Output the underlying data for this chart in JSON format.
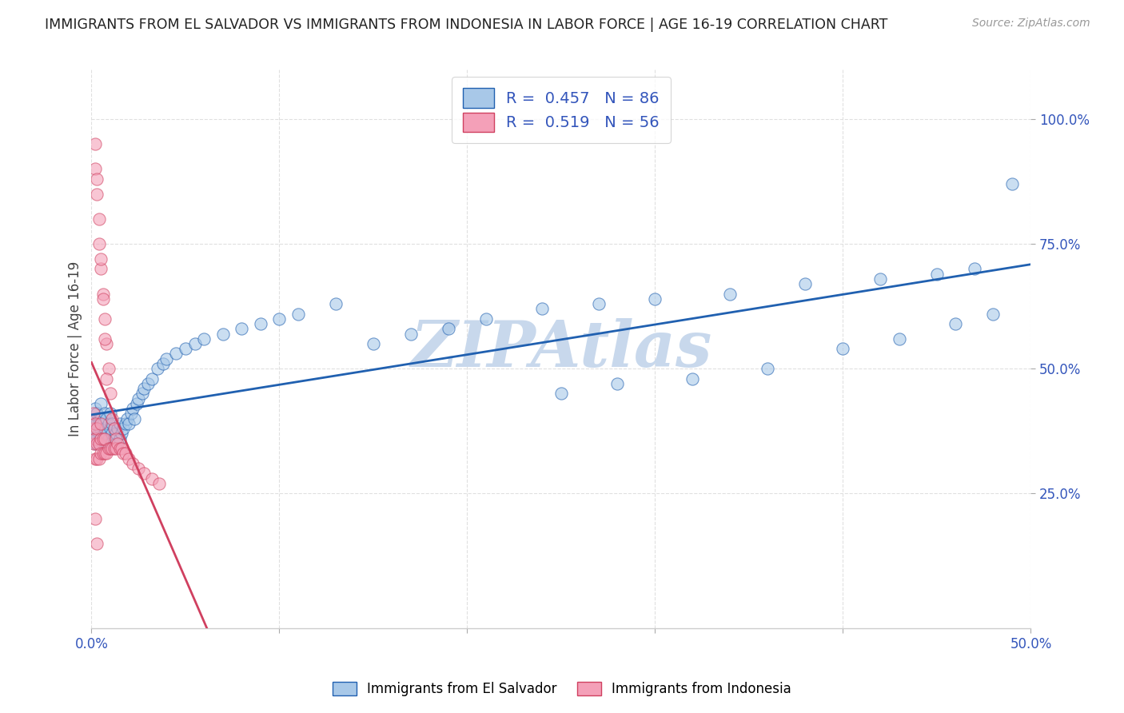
{
  "title": "IMMIGRANTS FROM EL SALVADOR VS IMMIGRANTS FROM INDONESIA IN LABOR FORCE | AGE 16-19 CORRELATION CHART",
  "source": "Source: ZipAtlas.com",
  "ylabel": "In Labor Force | Age 16-19",
  "legend_label1": "Immigrants from El Salvador",
  "legend_label2": "Immigrants from Indonesia",
  "R1": 0.457,
  "N1": 86,
  "R2": 0.519,
  "N2": 56,
  "color_salvador": "#a8c8e8",
  "color_indonesia": "#f4a0b8",
  "color_salvador_line": "#2060b0",
  "color_indonesia_line": "#d04060",
  "watermark": "ZIPAtlas",
  "watermark_color": "#c8d8ec",
  "xlim": [
    0.0,
    0.5
  ],
  "ylim": [
    -0.02,
    1.1
  ],
  "background_color": "#ffffff",
  "grid_color": "#e0e0e0",
  "text_color_blue": "#3355bb",
  "text_color_dark": "#222222",
  "text_color_gray": "#999999",
  "sal_x": [
    0.001,
    0.001,
    0.002,
    0.002,
    0.002,
    0.003,
    0.003,
    0.003,
    0.004,
    0.004,
    0.004,
    0.005,
    0.005,
    0.005,
    0.005,
    0.006,
    0.006,
    0.006,
    0.007,
    0.007,
    0.007,
    0.008,
    0.008,
    0.008,
    0.009,
    0.009,
    0.01,
    0.01,
    0.01,
    0.011,
    0.011,
    0.012,
    0.012,
    0.013,
    0.013,
    0.014,
    0.015,
    0.015,
    0.016,
    0.017,
    0.018,
    0.019,
    0.02,
    0.021,
    0.022,
    0.023,
    0.024,
    0.025,
    0.027,
    0.028,
    0.03,
    0.032,
    0.035,
    0.038,
    0.04,
    0.045,
    0.05,
    0.055,
    0.06,
    0.07,
    0.08,
    0.09,
    0.1,
    0.11,
    0.13,
    0.15,
    0.17,
    0.19,
    0.21,
    0.24,
    0.27,
    0.3,
    0.34,
    0.38,
    0.42,
    0.45,
    0.47,
    0.49,
    0.32,
    0.36,
    0.25,
    0.28,
    0.4,
    0.43,
    0.46,
    0.48
  ],
  "sal_y": [
    0.37,
    0.4,
    0.35,
    0.38,
    0.42,
    0.36,
    0.39,
    0.41,
    0.35,
    0.37,
    0.4,
    0.36,
    0.38,
    0.4,
    0.43,
    0.35,
    0.37,
    0.39,
    0.36,
    0.38,
    0.41,
    0.35,
    0.37,
    0.4,
    0.36,
    0.39,
    0.35,
    0.38,
    0.41,
    0.37,
    0.39,
    0.36,
    0.38,
    0.35,
    0.37,
    0.38,
    0.36,
    0.39,
    0.37,
    0.38,
    0.39,
    0.4,
    0.39,
    0.41,
    0.42,
    0.4,
    0.43,
    0.44,
    0.45,
    0.46,
    0.47,
    0.48,
    0.5,
    0.51,
    0.52,
    0.53,
    0.54,
    0.55,
    0.56,
    0.57,
    0.58,
    0.59,
    0.6,
    0.61,
    0.63,
    0.55,
    0.57,
    0.58,
    0.6,
    0.62,
    0.63,
    0.64,
    0.65,
    0.67,
    0.68,
    0.69,
    0.7,
    0.87,
    0.48,
    0.5,
    0.45,
    0.47,
    0.54,
    0.56,
    0.59,
    0.61
  ],
  "ind_x": [
    0.001,
    0.001,
    0.001,
    0.002,
    0.002,
    0.002,
    0.002,
    0.003,
    0.003,
    0.003,
    0.003,
    0.004,
    0.004,
    0.004,
    0.005,
    0.005,
    0.005,
    0.005,
    0.006,
    0.006,
    0.006,
    0.007,
    0.007,
    0.007,
    0.008,
    0.008,
    0.009,
    0.009,
    0.01,
    0.01,
    0.011,
    0.011,
    0.012,
    0.012,
    0.013,
    0.013,
    0.014,
    0.015,
    0.016,
    0.017,
    0.018,
    0.02,
    0.022,
    0.025,
    0.028,
    0.032,
    0.036,
    0.002,
    0.003,
    0.004,
    0.005,
    0.006,
    0.007,
    0.008,
    0.002,
    0.003
  ],
  "ind_y": [
    0.35,
    0.38,
    0.41,
    0.9,
    0.32,
    0.36,
    0.39,
    0.85,
    0.32,
    0.35,
    0.38,
    0.75,
    0.32,
    0.35,
    0.7,
    0.33,
    0.36,
    0.39,
    0.65,
    0.33,
    0.36,
    0.6,
    0.33,
    0.36,
    0.55,
    0.33,
    0.5,
    0.34,
    0.45,
    0.34,
    0.4,
    0.34,
    0.38,
    0.34,
    0.36,
    0.34,
    0.35,
    0.34,
    0.34,
    0.33,
    0.33,
    0.32,
    0.31,
    0.3,
    0.29,
    0.28,
    0.27,
    0.95,
    0.88,
    0.8,
    0.72,
    0.64,
    0.56,
    0.48,
    0.2,
    0.15
  ]
}
